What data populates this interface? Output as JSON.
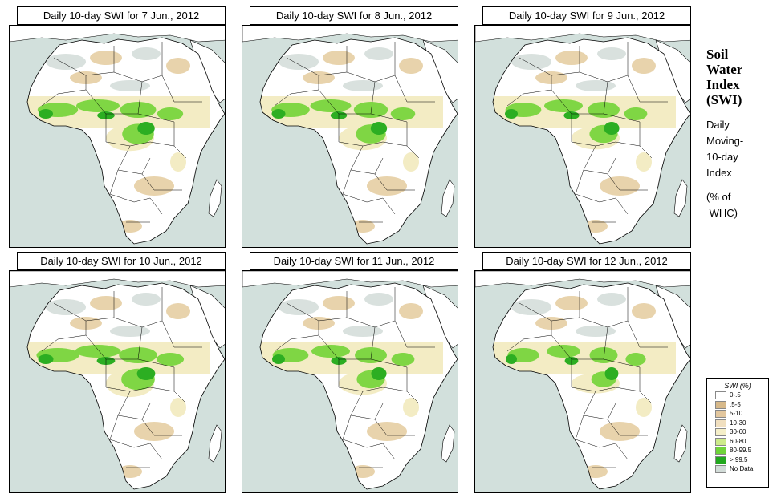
{
  "panels": [
    {
      "title": "Daily 10-day SWI for  7 Jun., 2012",
      "wet_level": 0.9
    },
    {
      "title": "Daily 10-day SWI for  8 Jun., 2012",
      "wet_level": 0.85
    },
    {
      "title": "Daily 10-day SWI for  9 Jun., 2012",
      "wet_level": 0.8
    },
    {
      "title": "Daily 10-day SWI for  10 Jun., 2012",
      "wet_level": 0.95
    },
    {
      "title": "Daily 10-day SWI for  11 Jun., 2012",
      "wet_level": 0.8
    },
    {
      "title": "Daily 10-day SWI for  12 Jun., 2012",
      "wet_level": 0.7
    }
  ],
  "side": {
    "title_lines": [
      "Soil",
      "Water",
      "Index",
      "(SWI)"
    ],
    "desc_lines": [
      "Daily",
      "Moving-",
      "10-day",
      "Index"
    ],
    "unit_lines": [
      "(% of",
      " WHC)"
    ]
  },
  "legend": {
    "title": "SWI (%)",
    "items": [
      {
        "label": "0-.5",
        "color": "#ffffff"
      },
      {
        "label": ".5-5",
        "color": "#d7b98a"
      },
      {
        "label": "5-10",
        "color": "#e3c79e"
      },
      {
        "label": "10-30",
        "color": "#f0dfbf"
      },
      {
        "label": "30-60",
        "color": "#f5efc9"
      },
      {
        "label": "60-80",
        "color": "#cdeb8b"
      },
      {
        "label": "80-99.5",
        "color": "#6fd43a"
      },
      {
        "label": "> 99.5",
        "color": "#22a81e"
      },
      {
        "label": "No Data",
        "color": "#d2dcd8"
      }
    ]
  },
  "colors": {
    "ocean": "#d2e0dc",
    "land": "#ffffff",
    "dry": "#e8d3ac",
    "desert_nodata": "#d9e1de",
    "moist": "#f3ecc4",
    "wet": "#7fd644",
    "very_wet": "#2cae22",
    "border": "#000000"
  }
}
